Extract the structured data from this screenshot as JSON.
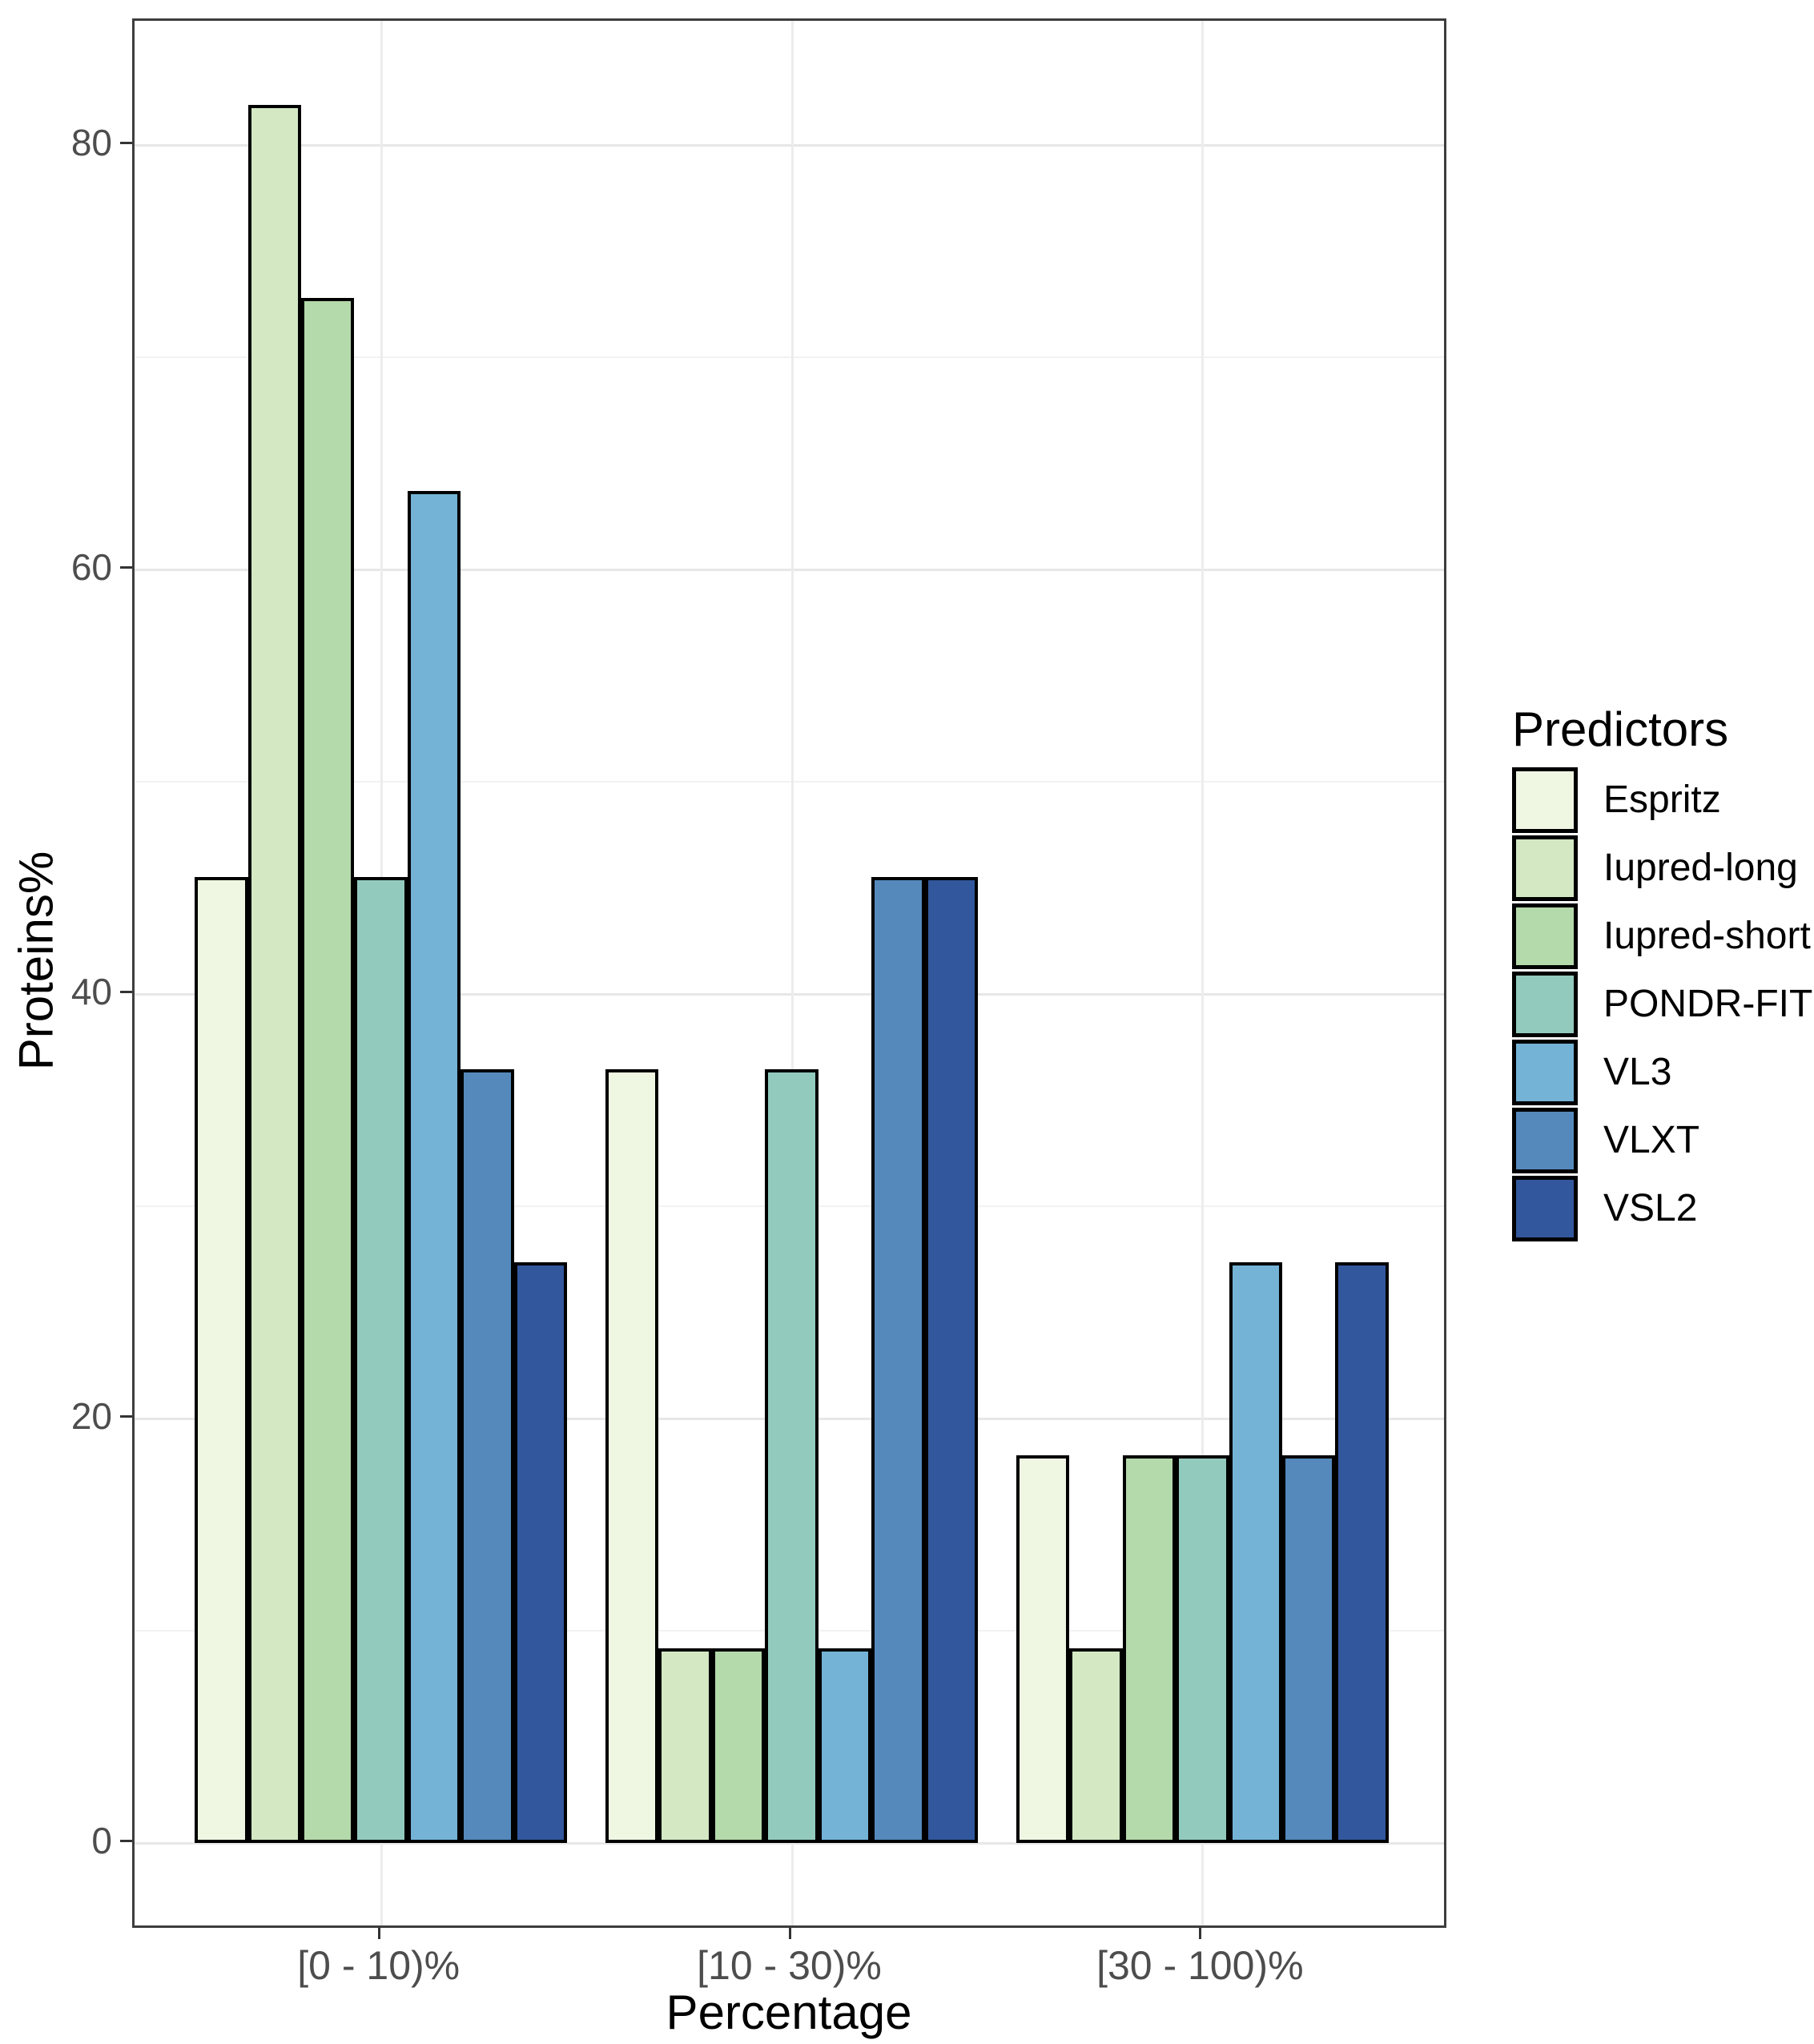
{
  "chart_data": {
    "type": "bar",
    "title": "",
    "xlabel": "Percentage",
    "ylabel": "Proteins%",
    "categories": [
      "[0 - 10)%",
      "[10 - 30)%",
      "[30 - 100)%"
    ],
    "series": [
      {
        "name": "Espritz",
        "color": "#eff7e3",
        "values": [
          45.45,
          36.36,
          18.18
        ]
      },
      {
        "name": "Iupred-long",
        "color": "#d3e8c3",
        "values": [
          81.82,
          9.09,
          9.09
        ]
      },
      {
        "name": "Iupred-short",
        "color": "#b4d9aa",
        "values": [
          72.73,
          9.09,
          18.18
        ]
      },
      {
        "name": "PONDR-FIT",
        "color": "#93cabe",
        "values": [
          45.45,
          36.36,
          18.18
        ]
      },
      {
        "name": "VL3",
        "color": "#74b3d6",
        "values": [
          63.64,
          9.09,
          27.27
        ]
      },
      {
        "name": "VLXT",
        "color": "#5589bc",
        "values": [
          36.36,
          45.45,
          18.18
        ]
      },
      {
        "name": "VSL2",
        "color": "#32579c",
        "values": [
          27.27,
          45.45,
          27.27
        ]
      }
    ],
    "y_ticks": [
      0,
      20,
      40,
      60,
      80
    ],
    "y_minor_ticks": [
      10,
      30,
      50,
      70
    ],
    "ylim": [
      0,
      85.9
    ],
    "legend_title": "Predictors",
    "legend_position": "right",
    "grid": "major-and-minor",
    "background": "#ffffff",
    "bar_outline_color": "#000000"
  }
}
